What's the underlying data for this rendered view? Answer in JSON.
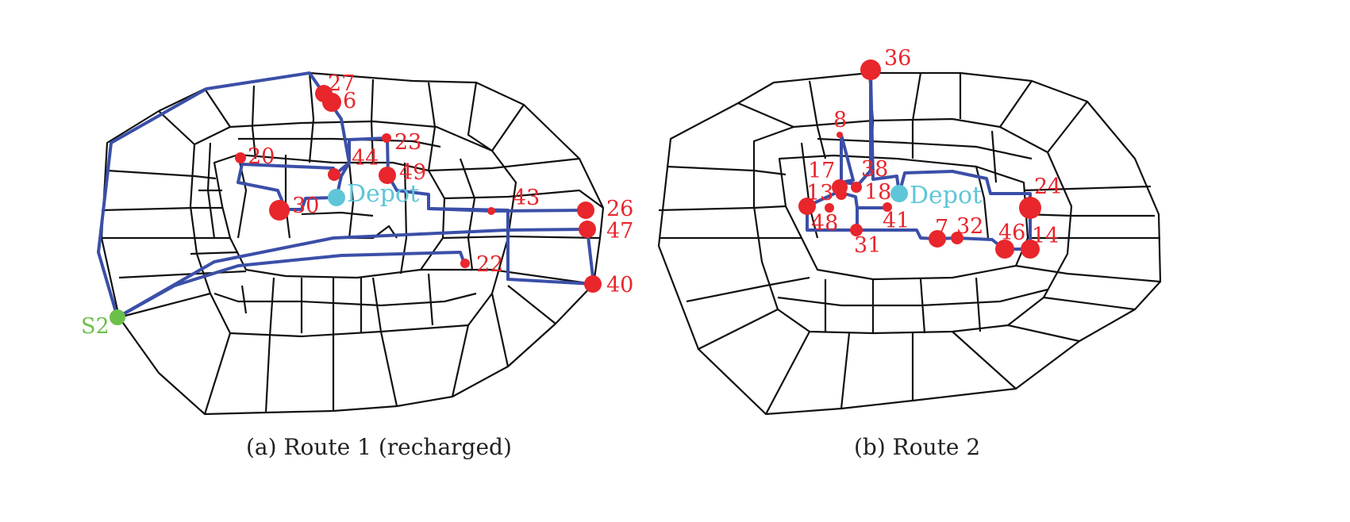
{
  "colors": {
    "road": "#111111",
    "route": "#3b4fa8",
    "customer": "#e8262c",
    "depot": "#5ec6d8",
    "station": "#6cc04a"
  },
  "panels": [
    {
      "caption": "(a)  Route 1 (recharged)",
      "depot_label": "Depot",
      "station_label": "S2",
      "customer_labels": [
        "27",
        "6",
        "20",
        "23",
        "44",
        "49",
        "30",
        "43",
        "26",
        "47",
        "22",
        "40"
      ]
    },
    {
      "caption": "(b)  Route 2",
      "depot_label": "Depot",
      "customer_labels": [
        "36",
        "8",
        "17",
        "38",
        "13",
        "18",
        "24",
        "48",
        "41",
        "7",
        "32",
        "46",
        "14",
        "31"
      ]
    }
  ]
}
